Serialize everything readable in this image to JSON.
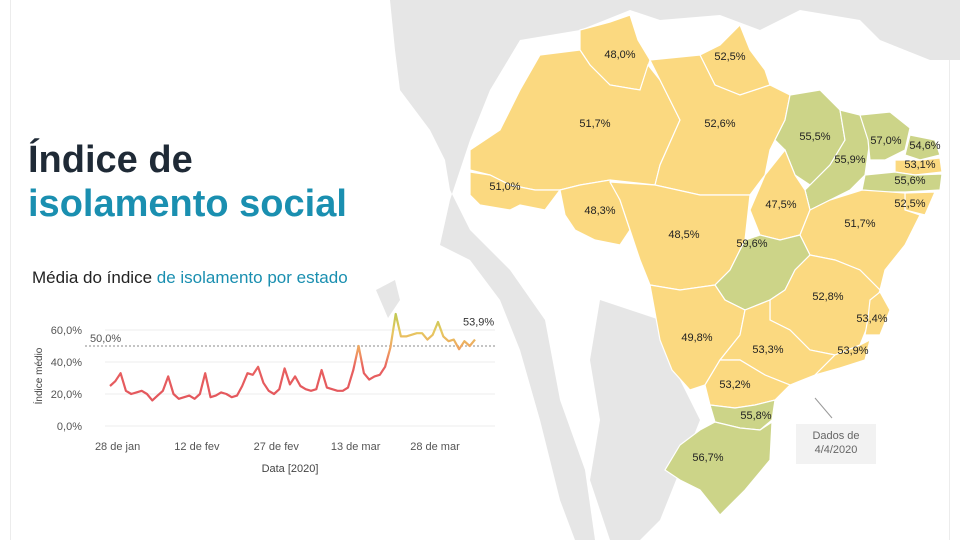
{
  "title": {
    "line1": "Índice de",
    "line2": "isolamento social"
  },
  "subtitle": {
    "part1": "Média do índice ",
    "part2": "de isolamento por estado"
  },
  "note": {
    "line1": "Dados de",
    "line2": "4/4/2020"
  },
  "colors": {
    "low": "#e0505a",
    "mid": "#f0a060",
    "high": "#a8c84a",
    "title_dark": "#1f2a36",
    "accent": "#1a8fb0",
    "map_yellow": "#fbd980",
    "map_green": "#ccd488",
    "land_gray": "#e6e6e6"
  },
  "chart_data": {
    "type": "line",
    "ylabel": "Índice médio",
    "xlabel": "Data [2020]",
    "x_ticks": [
      "28 de jan",
      "12 de fev",
      "27 de fev",
      "13 de mar",
      "28 de mar"
    ],
    "y_ticks": [
      "0,0%",
      "20,0%",
      "40,0%",
      "60,0%"
    ],
    "ylim": [
      0,
      75
    ],
    "reference_line": {
      "value": 50,
      "label": "50,0%"
    },
    "last_label": "53,9%",
    "grid": true,
    "x": [
      "2020-01-26",
      "2020-01-27",
      "2020-01-28",
      "2020-01-29",
      "2020-01-30",
      "2020-01-31",
      "2020-02-01",
      "2020-02-02",
      "2020-02-03",
      "2020-02-04",
      "2020-02-05",
      "2020-02-06",
      "2020-02-07",
      "2020-02-08",
      "2020-02-09",
      "2020-02-10",
      "2020-02-11",
      "2020-02-12",
      "2020-02-13",
      "2020-02-14",
      "2020-02-15",
      "2020-02-16",
      "2020-02-17",
      "2020-02-18",
      "2020-02-19",
      "2020-02-20",
      "2020-02-21",
      "2020-02-22",
      "2020-02-23",
      "2020-02-24",
      "2020-02-25",
      "2020-02-26",
      "2020-02-27",
      "2020-02-28",
      "2020-02-29",
      "2020-03-01",
      "2020-03-02",
      "2020-03-03",
      "2020-03-04",
      "2020-03-05",
      "2020-03-06",
      "2020-03-07",
      "2020-03-08",
      "2020-03-09",
      "2020-03-10",
      "2020-03-11",
      "2020-03-12",
      "2020-03-13",
      "2020-03-14",
      "2020-03-15",
      "2020-03-16",
      "2020-03-17",
      "2020-03-18",
      "2020-03-19",
      "2020-03-20",
      "2020-03-21",
      "2020-03-22",
      "2020-03-23",
      "2020-03-24",
      "2020-03-25",
      "2020-03-26",
      "2020-03-27",
      "2020-03-28",
      "2020-03-29",
      "2020-03-30",
      "2020-03-31",
      "2020-04-01",
      "2020-04-02",
      "2020-04-03",
      "2020-04-04"
    ],
    "values": [
      25,
      28,
      33,
      22,
      20,
      21,
      22,
      20,
      16,
      19,
      22,
      31,
      20,
      17,
      18,
      19,
      17,
      20,
      33,
      18,
      19,
      21,
      20,
      18,
      19,
      25,
      33,
      32,
      37,
      27,
      22,
      20,
      23,
      36,
      26,
      31,
      25,
      23,
      22,
      23,
      35,
      24,
      23,
      22,
      22,
      24,
      35,
      50,
      33,
      29,
      31,
      32,
      37,
      49,
      70,
      56,
      56,
      57,
      58,
      58,
      54,
      57,
      65,
      56,
      53,
      54,
      48,
      53,
      50,
      54
    ]
  },
  "map": {
    "states": [
      {
        "abbr": "RR",
        "value": "48,0%",
        "color": "yellow"
      },
      {
        "abbr": "AP",
        "value": "52,5%",
        "color": "yellow"
      },
      {
        "abbr": "AM",
        "value": "51,7%",
        "color": "yellow"
      },
      {
        "abbr": "PA",
        "value": "52,6%",
        "color": "yellow"
      },
      {
        "abbr": "MA",
        "value": "55,5%",
        "color": "green"
      },
      {
        "abbr": "CE",
        "value": "57,0%",
        "color": "green"
      },
      {
        "abbr": "RN",
        "value": "54,6%",
        "color": "green"
      },
      {
        "abbr": "PI",
        "value": "55,9%",
        "color": "green"
      },
      {
        "abbr": "PB",
        "value": "53,1%",
        "color": "yellow"
      },
      {
        "abbr": "PE",
        "value": "55,6%",
        "color": "green"
      },
      {
        "abbr": "AC",
        "value": "51,0%",
        "color": "yellow"
      },
      {
        "abbr": "RO",
        "value": "48,3%",
        "color": "yellow"
      },
      {
        "abbr": "TO",
        "value": "47,5%",
        "color": "yellow"
      },
      {
        "abbr": "AL",
        "value": "52,5%",
        "color": "yellow"
      },
      {
        "abbr": "MT",
        "value": "48,5%",
        "color": "yellow"
      },
      {
        "abbr": "BA",
        "value": "51,7%",
        "color": "yellow"
      },
      {
        "abbr": "GO",
        "value": "59,6%",
        "color": "green"
      },
      {
        "abbr": "MG",
        "value": "52,8%",
        "color": "yellow"
      },
      {
        "abbr": "ES",
        "value": "53,4%",
        "color": "yellow"
      },
      {
        "abbr": "MS",
        "value": "49,8%",
        "color": "yellow"
      },
      {
        "abbr": "SP",
        "value": "53,3%",
        "color": "yellow"
      },
      {
        "abbr": "RJ",
        "value": "53,9%",
        "color": "yellow"
      },
      {
        "abbr": "PR",
        "value": "53,2%",
        "color": "yellow"
      },
      {
        "abbr": "SC",
        "value": "55,8%",
        "color": "green"
      },
      {
        "abbr": "RS",
        "value": "56,7%",
        "color": "green"
      }
    ]
  }
}
